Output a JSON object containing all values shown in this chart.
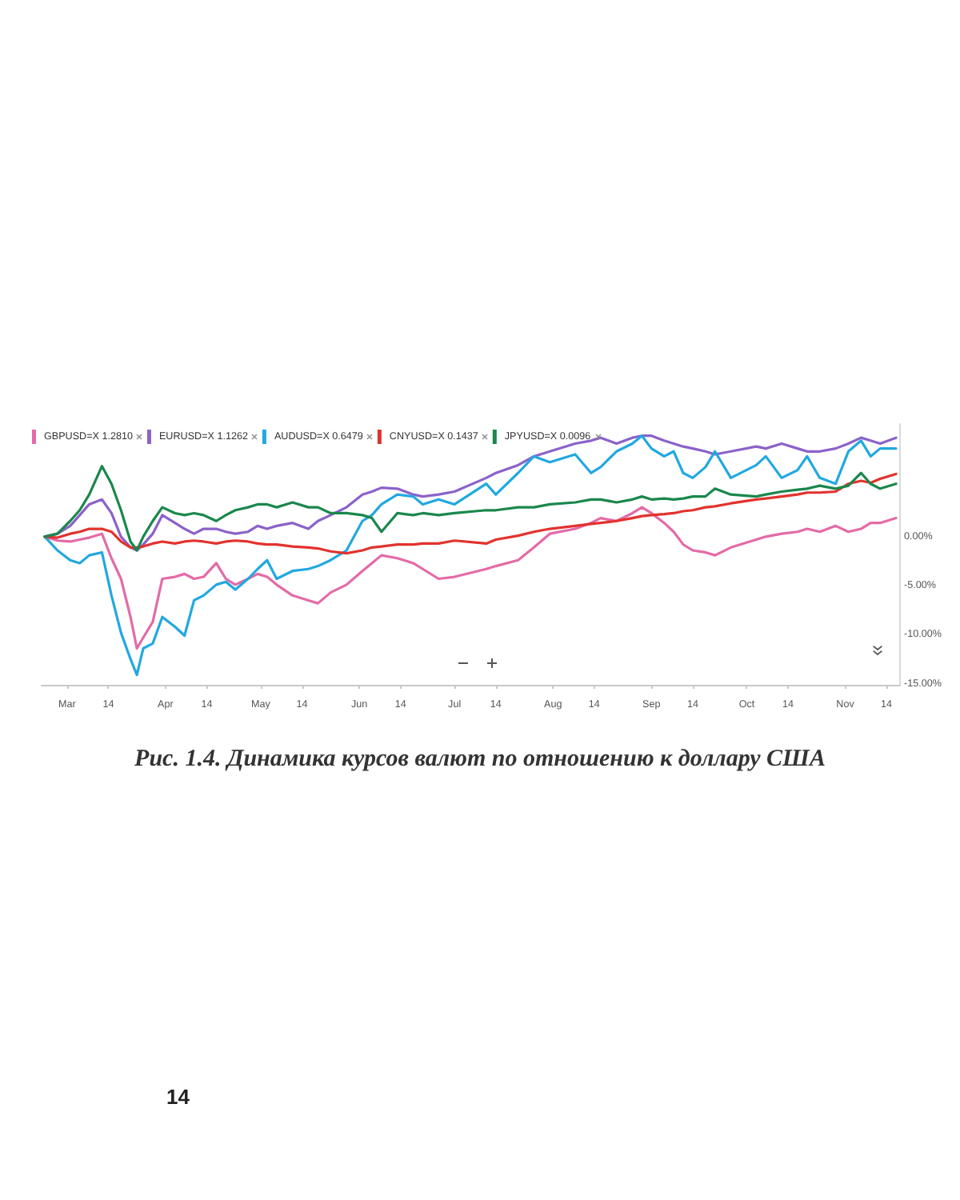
{
  "chart_data": {
    "type": "line",
    "title": "Рис. 1.4. Динамика курсов валют по отношению к доллару США",
    "annotations": [
      "14"
    ],
    "x": [
      "--02-22",
      "--02-26",
      "--03-02",
      "--03-05",
      "--03-08",
      "--03-12",
      "--03-15",
      "--03-18",
      "--03-21",
      "--03-23",
      "--03-25",
      "--03-28",
      "--03-31",
      "--04-04",
      "--04-07",
      "--04-10",
      "--04-13",
      "--04-17",
      "--04-20",
      "--04-23",
      "--04-27",
      "--04-30",
      "--05-03",
      "--05-06",
      "--05-11",
      "--05-16",
      "--05-19",
      "--05-23",
      "--05-28",
      "--06-02",
      "--06-05",
      "--06-08",
      "--06-13",
      "--06-18",
      "--06-21",
      "--06-26",
      "--07-01",
      "--07-11",
      "--07-14",
      "--07-21",
      "--07-26",
      "--07-31",
      "--08-08",
      "--08-13",
      "--08-16",
      "--08-21",
      "--08-26",
      "--08-29",
      "--09-01",
      "--09-05",
      "--09-08",
      "--09-11",
      "--09-14",
      "--09-18",
      "--09-21",
      "--09-26",
      "--10-04",
      "--10-07",
      "--10-12",
      "--10-17",
      "--10-20",
      "--10-24",
      "--10-29",
      "--11-02",
      "--11-06",
      "--11-09",
      "--11-12",
      "--11-17"
    ],
    "series": [
      {
        "name": "GBPUSD=X 1.2810",
        "color": "#e46aa7",
        "values": [
          0,
          -0.4,
          -0.5,
          -0.3,
          -0.1,
          0.3,
          -2.2,
          -4.3,
          -8.2,
          -11.4,
          -10.3,
          -8.7,
          -4.3,
          -4.1,
          -3.8,
          -4.3,
          -4.1,
          -2.7,
          -4.3,
          -4.9,
          -4.3,
          -3.8,
          -4.1,
          -4.9,
          -6.0,
          -6.5,
          -6.8,
          -5.7,
          -4.9,
          -3.5,
          -2.7,
          -1.9,
          -2.2,
          -2.7,
          -3.3,
          -4.3,
          -4.1,
          -3.3,
          -3.0,
          -2.4,
          -1.1,
          0.3,
          0.8,
          1.4,
          1.9,
          1.6,
          2.4,
          3.0,
          2.4,
          1.4,
          0.5,
          -0.8,
          -1.4,
          -1.6,
          -1.9,
          -1.1,
          -0.3,
          0,
          0.3,
          0.5,
          0.8,
          0.5,
          1.1,
          0.5,
          0.8,
          1.4,
          1.4,
          1.9
        ]
      },
      {
        "name": "EURUSD=X 1.1262",
        "color": "#8b62c9",
        "values": [
          0,
          0.3,
          1.1,
          2.2,
          3.3,
          3.8,
          2.4,
          0,
          -1.1,
          -1.4,
          -0.8,
          0.3,
          2.2,
          1.4,
          0.8,
          0.3,
          0.8,
          0.8,
          0.5,
          0.3,
          0.5,
          1.1,
          0.8,
          1.1,
          1.4,
          0.8,
          1.6,
          2.2,
          3.0,
          4.3,
          4.6,
          5.0,
          4.9,
          4.3,
          4.1,
          4.3,
          4.6,
          6.0,
          6.5,
          7.3,
          8.2,
          8.7,
          9.5,
          9.8,
          10.1,
          9.5,
          10.1,
          10.3,
          10.3,
          9.8,
          9.5,
          9.2,
          9.0,
          8.7,
          8.4,
          8.7,
          9.2,
          9.0,
          9.5,
          9.0,
          8.7,
          8.7,
          9.0,
          9.5,
          10.1,
          9.8,
          9.5,
          10.1
        ]
      },
      {
        "name": "AUDUSD=X 0.6479",
        "color": "#22a8e0",
        "values": [
          0,
          -1.4,
          -2.4,
          -2.7,
          -1.9,
          -1.6,
          -6.0,
          -9.8,
          -12.5,
          -14.1,
          -11.4,
          -10.9,
          -8.2,
          -9.2,
          -10.1,
          -6.5,
          -6.0,
          -4.9,
          -4.6,
          -5.4,
          -4.3,
          -3.3,
          -2.4,
          -4.3,
          -3.5,
          -3.3,
          -3.0,
          -2.4,
          -1.4,
          1.6,
          2.2,
          3.3,
          4.3,
          4.1,
          3.3,
          3.8,
          3.3,
          5.4,
          4.3,
          6.5,
          8.2,
          7.6,
          8.4,
          6.5,
          7.1,
          8.7,
          9.5,
          10.3,
          9.0,
          8.2,
          8.7,
          6.5,
          6.0,
          7.1,
          8.7,
          6.0,
          7.3,
          8.2,
          6.0,
          6.8,
          8.2,
          6.0,
          5.4,
          8.7,
          9.8,
          8.2,
          9.0,
          9.0
        ]
      },
      {
        "name": "CNYUSD=X 0.1437",
        "color": "#e2322d",
        "values": [
          0,
          -0.1,
          0.3,
          0.5,
          0.8,
          0.8,
          0.5,
          -0.5,
          -1.1,
          -1.1,
          -1.0,
          -0.7,
          -0.5,
          -0.7,
          -0.5,
          -0.4,
          -0.5,
          -0.7,
          -0.5,
          -0.4,
          -0.5,
          -0.7,
          -0.8,
          -0.8,
          -1.0,
          -1.1,
          -1.2,
          -1.5,
          -1.7,
          -1.4,
          -1.1,
          -1.0,
          -0.8,
          -0.8,
          -0.7,
          -0.7,
          -0.4,
          -0.7,
          -0.3,
          0.1,
          0.5,
          0.8,
          1.1,
          1.3,
          1.4,
          1.6,
          1.9,
          2.1,
          2.2,
          2.3,
          2.4,
          2.6,
          2.7,
          3.0,
          3.1,
          3.4,
          3.8,
          3.9,
          4.1,
          4.3,
          4.5,
          4.5,
          4.6,
          5.4,
          5.7,
          5.5,
          5.9,
          6.4
        ]
      },
      {
        "name": "JPYUSD=X 0.0096",
        "color": "#1b874c",
        "values": [
          0,
          0.3,
          1.6,
          2.7,
          4.3,
          7.2,
          5.4,
          2.7,
          -0.5,
          -1.4,
          0,
          1.6,
          3.0,
          2.4,
          2.2,
          2.4,
          2.2,
          1.6,
          2.2,
          2.7,
          3.0,
          3.3,
          3.3,
          3.0,
          3.5,
          3.0,
          3.0,
          2.4,
          2.4,
          2.2,
          1.9,
          0.5,
          2.4,
          2.2,
          2.4,
          2.2,
          2.4,
          2.7,
          2.7,
          3.0,
          3.0,
          3.3,
          3.5,
          3.8,
          3.8,
          3.5,
          3.8,
          4.1,
          3.8,
          3.9,
          3.8,
          3.9,
          4.1,
          4.1,
          4.9,
          4.3,
          4.1,
          4.3,
          4.6,
          4.8,
          4.9,
          5.2,
          4.9,
          5.2,
          6.5,
          5.4,
          4.9,
          5.4
        ]
      }
    ],
    "xlim": [
      "--02-21",
      "--11-18"
    ],
    "xticks": [
      {
        "value": "--03-01",
        "label": "Mar"
      },
      {
        "value": "--03-14",
        "label": "14"
      },
      {
        "value": "--04-01",
        "label": "Apr"
      },
      {
        "value": "--04-14",
        "label": "14"
      },
      {
        "value": "--05-01",
        "label": "May"
      },
      {
        "value": "--05-14",
        "label": "14"
      },
      {
        "value": "--06-01",
        "label": "Jun"
      },
      {
        "value": "--06-14",
        "label": "14"
      },
      {
        "value": "--07-01",
        "label": "Jul"
      },
      {
        "value": "--07-14",
        "label": "14"
      },
      {
        "value": "--08-01",
        "label": "Aug"
      },
      {
        "value": "--08-14",
        "label": "14"
      },
      {
        "value": "--09-01",
        "label": "Sep"
      },
      {
        "value": "--09-14",
        "label": "14"
      },
      {
        "value": "--10-01",
        "label": "Oct"
      },
      {
        "value": "--10-14",
        "label": "14"
      },
      {
        "value": "--11-01",
        "label": "Nov"
      },
      {
        "value": "--11-14",
        "label": "14"
      }
    ],
    "ylim": [
      -15.2,
      11.5
    ],
    "yticks": [
      {
        "value": -15,
        "label": "-15.00%"
      },
      {
        "value": -10,
        "label": "-10.00%"
      },
      {
        "value": -5,
        "label": "-5.00%"
      },
      {
        "value": 0,
        "label": "0.00%"
      }
    ],
    "legend": "top left",
    "marker": "none",
    "line_style": "solid"
  }
}
